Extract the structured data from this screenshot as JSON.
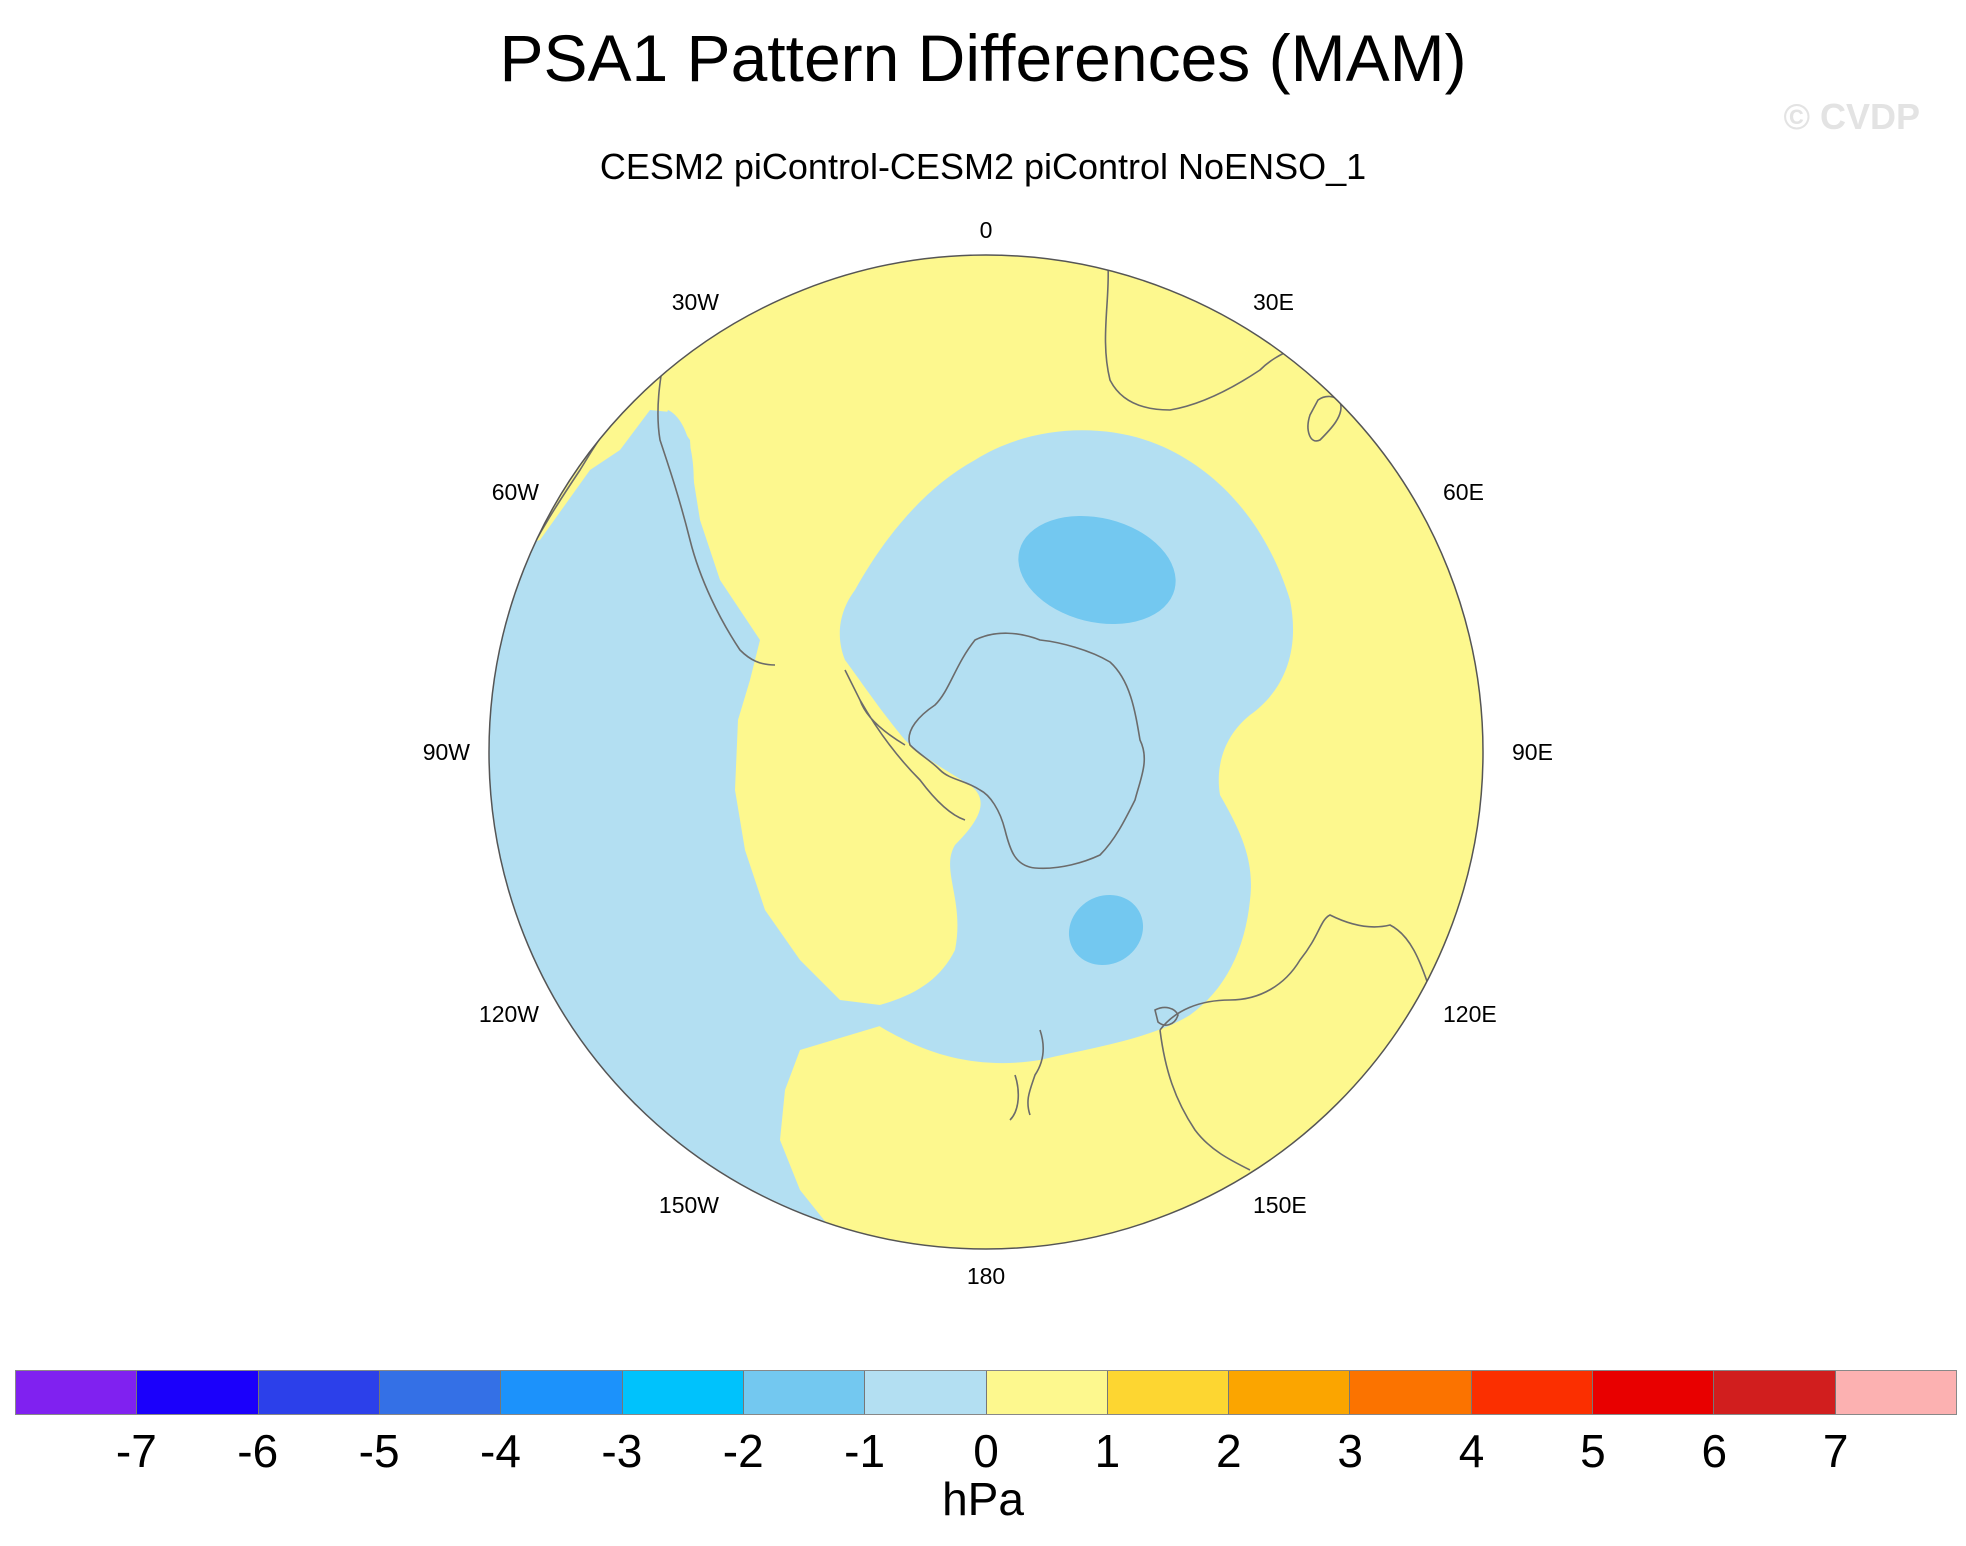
{
  "title": "PSA1 Pattern Differences (MAM)",
  "subtitle": "CESM2 piControl-CESM2 piControl NoENSO_1",
  "watermark": "© CVDP",
  "map": {
    "projection": "south polar stereographic",
    "longitude_labels": [
      "0",
      "30E",
      "60E",
      "90E",
      "120E",
      "150E",
      "180",
      "150W",
      "120W",
      "90W",
      "60W",
      "30W"
    ],
    "field_colors": {
      "neg_0_1": "#b3dff2",
      "neg_1_2": "#73c8f0",
      "pos_0_1": "#fdf88e"
    }
  },
  "colorbar": {
    "units": "hPa",
    "tick_labels": [
      "-7",
      "-6",
      "-5",
      "-4",
      "-3",
      "-2",
      "-1",
      "0",
      "1",
      "2",
      "3",
      "4",
      "5",
      "6",
      "7"
    ],
    "colors": [
      "#8021f0",
      "#1b00fb",
      "#2c40ea",
      "#3470e6",
      "#1c92fb",
      "#00c2fc",
      "#73c8f0",
      "#b3dff2",
      "#fdf88e",
      "#fdd631",
      "#fba500",
      "#fb7300",
      "#fb2f00",
      "#e80000",
      "#d11e1e",
      "#fcb1b1"
    ]
  }
}
